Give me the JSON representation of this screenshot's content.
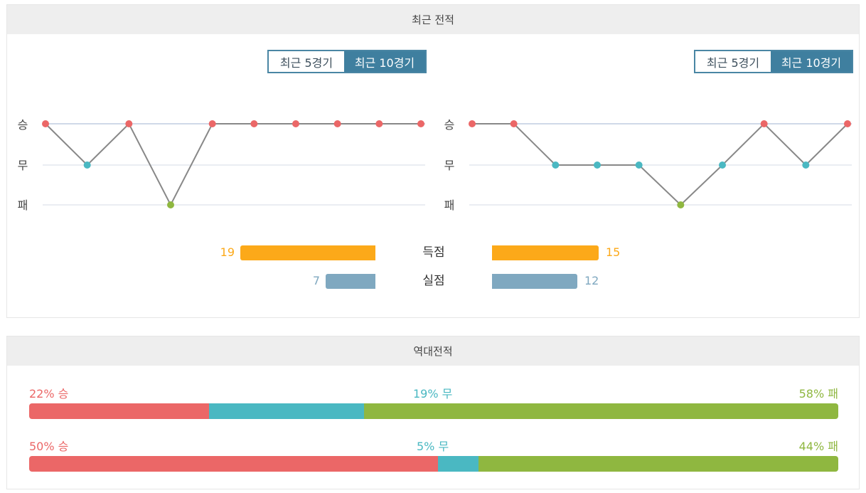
{
  "colors": {
    "win": "#eb6767",
    "draw": "#4ab8c2",
    "loss": "#8fb740",
    "scored": "#fca919",
    "conceded": "#7fa8c0",
    "line": "#888888"
  },
  "recent": {
    "header": "최근 전적",
    "toggle_left": {
      "opt5": "최근 5경기",
      "opt10": "최근 10경기"
    },
    "toggle_right": {
      "opt5": "최근 5경기",
      "opt10": "최근 10경기"
    },
    "y_labels": {
      "win": "승",
      "draw": "무",
      "loss": "패"
    }
  },
  "stats": {
    "scored": {
      "label": "득점",
      "left": "19",
      "right": "15"
    },
    "conceded": {
      "label": "실점",
      "left": "7",
      "right": "12"
    }
  },
  "h2h": {
    "header": "역대전적",
    "rows": [
      {
        "win_label": "22% 승",
        "draw_label": "19% 무",
        "loss_label": "58% 패",
        "win": 22,
        "draw": 19,
        "loss": 58
      },
      {
        "win_label": "50% 승",
        "draw_label": "5% 무",
        "loss_label": "44% 패",
        "win": 50,
        "draw": 5,
        "loss": 44
      }
    ]
  },
  "chart_data": [
    {
      "type": "line",
      "x": [
        1,
        2,
        3,
        4,
        5,
        6,
        7,
        8,
        9,
        10
      ],
      "y_categories": [
        "패",
        "무",
        "승"
      ],
      "series": [
        {
          "values": [
            "승",
            "무",
            "승",
            "패",
            "승",
            "승",
            "승",
            "승",
            "승",
            "승"
          ]
        }
      ]
    },
    {
      "type": "line",
      "x": [
        1,
        2,
        3,
        4,
        5,
        6,
        7,
        8,
        9,
        10
      ],
      "y_categories": [
        "패",
        "무",
        "승"
      ],
      "series": [
        {
          "values": [
            "승",
            "승",
            "무",
            "무",
            "무",
            "패",
            "무",
            "승",
            "무",
            "승"
          ]
        }
      ]
    },
    {
      "type": "bar",
      "categories": [
        "득점",
        "실점"
      ],
      "series": [
        {
          "values": [
            19,
            7
          ]
        },
        {
          "values": [
            15,
            12
          ]
        }
      ]
    }
  ]
}
